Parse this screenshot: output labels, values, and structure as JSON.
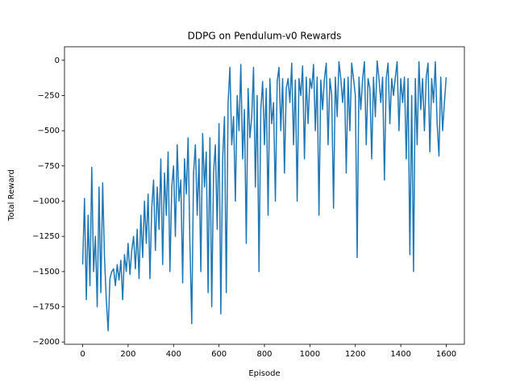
{
  "chart_data": {
    "type": "line",
    "title": "DDPG on Pendulum-v0 Rewards",
    "xlabel": "Episode",
    "ylabel": "Total Reward",
    "color": "#1f77b4",
    "x": [
      0,
      8,
      16,
      24,
      32,
      40,
      48,
      56,
      64,
      72,
      80,
      88,
      96,
      104,
      112,
      120,
      128,
      136,
      144,
      152,
      160,
      168,
      176,
      184,
      192,
      200,
      208,
      216,
      224,
      232,
      240,
      248,
      256,
      264,
      272,
      280,
      288,
      296,
      304,
      312,
      320,
      328,
      336,
      344,
      352,
      360,
      368,
      376,
      384,
      392,
      400,
      408,
      416,
      424,
      432,
      440,
      448,
      456,
      464,
      472,
      480,
      488,
      496,
      504,
      512,
      520,
      528,
      536,
      544,
      552,
      560,
      568,
      576,
      584,
      592,
      600,
      608,
      616,
      624,
      632,
      640,
      648,
      656,
      664,
      672,
      680,
      688,
      696,
      704,
      712,
      720,
      728,
      736,
      744,
      752,
      760,
      768,
      776,
      784,
      792,
      800,
      808,
      816,
      824,
      832,
      840,
      848,
      856,
      864,
      872,
      880,
      888,
      896,
      904,
      912,
      920,
      928,
      936,
      944,
      952,
      960,
      968,
      976,
      984,
      992,
      1000,
      1008,
      1016,
      1024,
      1032,
      1040,
      1048,
      1056,
      1064,
      1072,
      1080,
      1088,
      1096,
      1104,
      1112,
      1120,
      1128,
      1136,
      1144,
      1152,
      1160,
      1168,
      1176,
      1184,
      1192,
      1200,
      1208,
      1216,
      1224,
      1232,
      1240,
      1248,
      1256,
      1264,
      1272,
      1280,
      1288,
      1296,
      1304,
      1312,
      1320,
      1328,
      1336,
      1344,
      1352,
      1360,
      1368,
      1376,
      1384,
      1392,
      1400,
      1408,
      1416,
      1424,
      1432,
      1440,
      1448,
      1456,
      1464,
      1472,
      1480,
      1488,
      1496,
      1504,
      1512,
      1520,
      1528,
      1536,
      1544,
      1552,
      1560,
      1568,
      1576,
      1584,
      1592,
      1600
    ],
    "values": [
      -1450,
      -980,
      -1700,
      -1100,
      -1600,
      -760,
      -1500,
      -1250,
      -1750,
      -900,
      -1650,
      -870,
      -1400,
      -1700,
      -1920,
      -1550,
      -1500,
      -1480,
      -1600,
      -1450,
      -1560,
      -1420,
      -1700,
      -1380,
      -1500,
      -1300,
      -1520,
      -1350,
      -1250,
      -1480,
      -1200,
      -1550,
      -1100,
      -1400,
      -1000,
      -1300,
      -950,
      -1550,
      -1050,
      -850,
      -1350,
      -900,
      -1200,
      -700,
      -1450,
      -800,
      -1100,
      -650,
      -1500,
      -900,
      -750,
      -1250,
      -600,
      -1000,
      -850,
      -1580,
      -700,
      -950,
      -550,
      -1300,
      -1870,
      -800,
      -600,
      -1100,
      -700,
      -1500,
      -520,
      -900,
      -650,
      -1650,
      -550,
      -1750,
      -800,
      -600,
      -1200,
      -450,
      -1800,
      -700,
      -400,
      -1650,
      -300,
      -50,
      -600,
      -400,
      -1000,
      -250,
      -500,
      -30,
      -700,
      -350,
      -1300,
      -200,
      -550,
      -400,
      -50,
      -900,
      -250,
      -1500,
      -350,
      -150,
      -600,
      -200,
      -1100,
      -130,
      -450,
      -300,
      -1000,
      -150,
      -50,
      -500,
      -130,
      -800,
      -200,
      -130,
      -300,
      -20,
      -600,
      -140,
      -1000,
      -130,
      -250,
      -40,
      -700,
      -120,
      -450,
      -130,
      -200,
      -30,
      -500,
      -120,
      -1100,
      -140,
      -350,
      -130,
      -20,
      -600,
      -130,
      -250,
      -1050,
      -120,
      -400,
      -10,
      -130,
      -300,
      -130,
      -800,
      -120,
      -500,
      -20,
      -130,
      -250,
      -1400,
      -120,
      -350,
      -130,
      -10,
      -600,
      -130,
      -200,
      -700,
      -120,
      -400,
      -5,
      -130,
      -300,
      -120,
      -850,
      -130,
      -20,
      -450,
      -130,
      -250,
      -120,
      -10,
      -500,
      -130,
      -300,
      -120,
      -700,
      -130,
      -1380,
      -250,
      -1500,
      -130,
      -600,
      -10,
      -350,
      -130,
      -500,
      -120,
      -20,
      -650,
      -130,
      -300,
      -10,
      -450,
      -680,
      -120,
      -500,
      -300,
      -120
    ],
    "xlim": [
      -80,
      1680
    ],
    "ylim": [
      -2016,
      96
    ],
    "xticks": [
      0,
      200,
      400,
      600,
      800,
      1000,
      1200,
      1400,
      1600
    ],
    "yticks": [
      {
        "value": -2000,
        "label": "−2000"
      },
      {
        "value": -1750,
        "label": "−1750"
      },
      {
        "value": -1500,
        "label": "−1500"
      },
      {
        "value": -1250,
        "label": "−1250"
      },
      {
        "value": -1000,
        "label": "−1000"
      },
      {
        "value": -750,
        "label": "−750"
      },
      {
        "value": -500,
        "label": "−500"
      },
      {
        "value": -250,
        "label": "−250"
      },
      0
    ],
    "grid": false
  }
}
